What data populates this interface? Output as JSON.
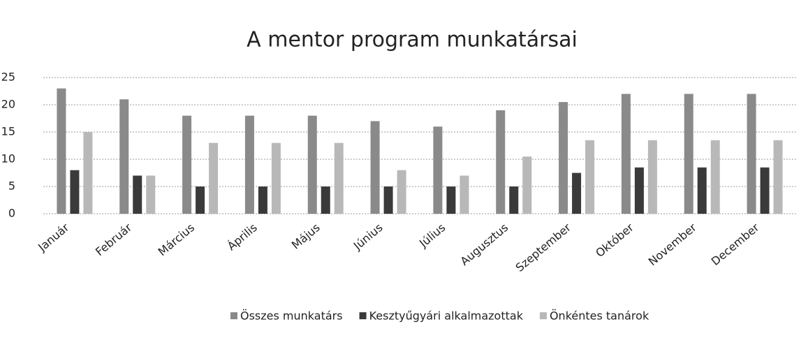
{
  "chart_data": {
    "type": "bar",
    "title": "A mentor program munkatársai",
    "categories": [
      "Január",
      "Február",
      "Március",
      "Április",
      "Május",
      "Június",
      "Július",
      "Augusztus",
      "Szeptember",
      "Október",
      "November",
      "December"
    ],
    "series": [
      {
        "name": "Összes munkatárs",
        "color": "#8a8a8a",
        "values": [
          23,
          21,
          18,
          18,
          18,
          17,
          16,
          19,
          20.5,
          22,
          22,
          22
        ]
      },
      {
        "name": "Kesztyűgyári alkalmazottak",
        "color": "#3a3a3a",
        "values": [
          8,
          7,
          5,
          5,
          5,
          5,
          5,
          5,
          7.5,
          8.5,
          8.5,
          8.5
        ]
      },
      {
        "name": "Önkéntes tanárok",
        "color": "#b8b8b8",
        "values": [
          15,
          7,
          13,
          13,
          13,
          8,
          7,
          10.5,
          13.5,
          13.5,
          13.5,
          13.5
        ]
      }
    ],
    "ylim": [
      0,
      25
    ],
    "yticks": [
      0,
      5,
      10,
      15,
      20,
      25
    ],
    "grid": true,
    "legend": "bottom"
  }
}
